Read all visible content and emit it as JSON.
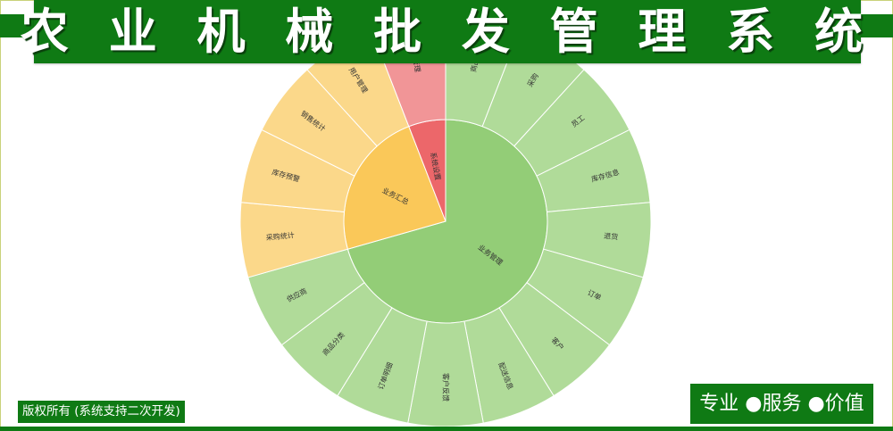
{
  "header": {
    "title": "农 业 机 械 批 发 管 理 系 统"
  },
  "chart_data": {
    "type": "sunburst",
    "inner": [
      {
        "name": "业务管理",
        "value": 12,
        "color": "#93cd77"
      },
      {
        "name": "业务汇总",
        "value": 4,
        "color": "#fac859"
      },
      {
        "name": "系统设置",
        "value": 1,
        "color": "#ec676a"
      }
    ],
    "outer": [
      {
        "name": "商品信息",
        "parent": "业务管理",
        "color": "#b0db99"
      },
      {
        "name": "采购",
        "parent": "业务管理",
        "color": "#b0db99"
      },
      {
        "name": "员工",
        "parent": "业务管理",
        "color": "#b0db99"
      },
      {
        "name": "库存信息",
        "parent": "业务管理",
        "color": "#b0db99"
      },
      {
        "name": "退货",
        "parent": "业务管理",
        "color": "#b0db99"
      },
      {
        "name": "订单",
        "parent": "业务管理",
        "color": "#b0db99"
      },
      {
        "name": "客户",
        "parent": "业务管理",
        "color": "#b0db99"
      },
      {
        "name": "配送信息",
        "parent": "业务管理",
        "color": "#b0db99"
      },
      {
        "name": "客户反馈",
        "parent": "业务管理",
        "color": "#b0db99"
      },
      {
        "name": "订单明细",
        "parent": "业务管理",
        "color": "#b0db99"
      },
      {
        "name": "商品分类",
        "parent": "业务管理",
        "color": "#b0db99"
      },
      {
        "name": "供应商",
        "parent": "业务管理",
        "color": "#b0db99"
      },
      {
        "name": "采购统计",
        "parent": "业务汇总",
        "color": "#fbd88a"
      },
      {
        "name": "库存预警",
        "parent": "业务汇总",
        "color": "#fbd88a"
      },
      {
        "name": "销售统计",
        "parent": "业务汇总",
        "color": "#fbd88a"
      },
      {
        "name": "用户管理",
        "parent": "业务汇总",
        "color": "#fbd88a"
      },
      {
        "name": "系统管理",
        "parent": "系统设置",
        "color": "#f19597"
      }
    ]
  },
  "footer": {
    "copyright": "版权所有 (系统支持二次开发)",
    "slogan": "专业 ●服务 ●价值"
  }
}
